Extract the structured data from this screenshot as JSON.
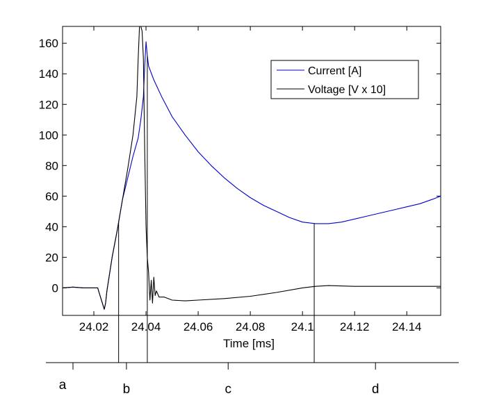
{
  "chart_data": {
    "type": "line",
    "xlabel": "Time [ms]",
    "ylabel": "",
    "xlim": [
      24.008,
      24.153
    ],
    "ylim": [
      -18,
      171
    ],
    "x_ticks": [
      24.02,
      24.04,
      24.06,
      24.08,
      24.1,
      24.12,
      24.14
    ],
    "x_tick_labels": [
      "24.02",
      "24.04",
      "24.06",
      "24.08",
      "24.1",
      "24.12",
      "24.14"
    ],
    "y_ticks": [
      0,
      20,
      40,
      60,
      80,
      100,
      120,
      140,
      160
    ],
    "y_tick_labels": [
      "0",
      "20",
      "40",
      "60",
      "80",
      "100",
      "120",
      "140",
      "160"
    ],
    "grid": false,
    "legend": "top-right",
    "series": [
      {
        "name": "Current [A]",
        "color": "#0000cc",
        "x": [
          24.008,
          24.012,
          24.016,
          24.02,
          24.0215,
          24.022,
          24.024,
          24.0245,
          24.025,
          24.027,
          24.029,
          24.031,
          24.033,
          24.035,
          24.037,
          24.038,
          24.039,
          24.0395,
          24.04,
          24.0405,
          24.041,
          24.043,
          24.046,
          24.05,
          24.055,
          24.06,
          24.065,
          24.07,
          24.075,
          24.08,
          24.085,
          24.09,
          24.095,
          24.1,
          24.105,
          24.11,
          24.115,
          24.12,
          24.125,
          24.13,
          24.135,
          24.14,
          24.145,
          24.15,
          24.153
        ],
        "y": [
          0,
          0.5,
          0,
          0,
          0,
          -3,
          -14,
          -10,
          -2,
          20,
          38,
          58,
          72,
          86,
          98,
          110,
          125,
          145,
          161,
          152,
          145,
          136,
          125,
          112,
          100,
          89,
          80,
          72,
          65,
          59,
          54,
          50,
          46,
          43,
          42,
          42,
          43,
          45,
          47,
          49,
          51,
          53,
          55,
          58,
          60
        ]
      },
      {
        "name": "Voltage [V x 10]",
        "color": "#000000",
        "x": [
          24.008,
          24.012,
          24.016,
          24.02,
          24.0215,
          24.022,
          24.024,
          24.0245,
          24.025,
          24.027,
          24.029,
          24.031,
          24.033,
          24.035,
          24.0365,
          24.037,
          24.0375,
          24.038,
          24.0385,
          24.039,
          24.0395,
          24.04,
          24.0405,
          24.041,
          24.0415,
          24.042,
          24.0425,
          24.043,
          24.0435,
          24.044,
          24.045,
          24.047,
          24.05,
          24.055,
          24.06,
          24.07,
          24.08,
          24.09,
          24.1,
          24.105,
          24.11,
          24.12,
          24.13,
          24.14,
          24.15,
          24.153
        ],
        "y": [
          0,
          0.5,
          0,
          0,
          0,
          -3,
          -14,
          -10,
          -2,
          20,
          38,
          58,
          78,
          100,
          125,
          150,
          171,
          171,
          168,
          150,
          90,
          40,
          20,
          10,
          -8,
          5,
          -10,
          7,
          -5,
          -2,
          -6,
          -6,
          -8,
          -8.5,
          -8,
          -7,
          -5.5,
          -3,
          0,
          1,
          1.5,
          1,
          1,
          1,
          1,
          1
        ]
      }
    ],
    "annotations": {
      "vertical_lines_x": [
        24.0295,
        24.0405,
        24.1045
      ],
      "phase_labels": [
        "a",
        "b",
        "c",
        "d"
      ],
      "phase_label_x": [
        24.008,
        24.0325,
        24.0715,
        24.128
      ],
      "phase_tick_x": [
        24.012,
        24.0325,
        24.0715,
        24.128
      ]
    }
  }
}
